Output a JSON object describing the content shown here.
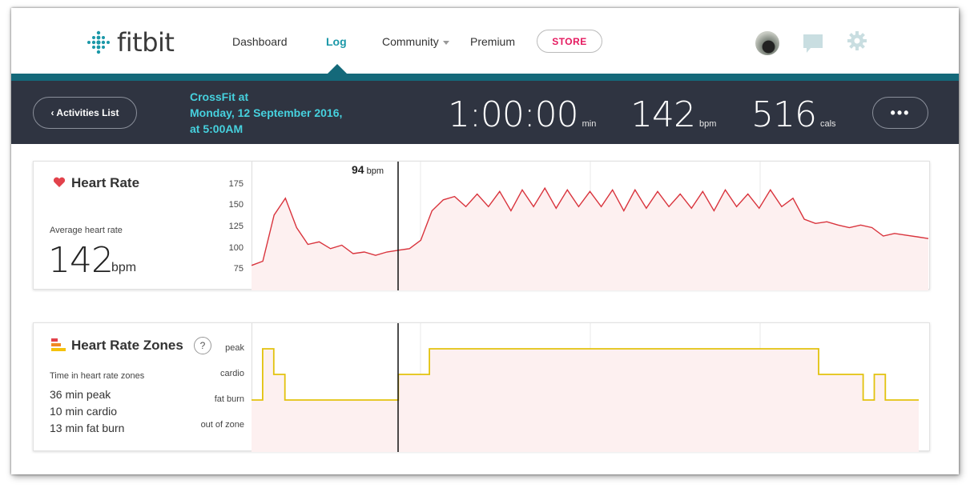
{
  "nav": {
    "logo_text": "fitbit",
    "items": [
      {
        "label": "Dashboard"
      },
      {
        "label": "Log"
      },
      {
        "label": "Community"
      },
      {
        "label": "Premium"
      }
    ],
    "store_label": "STORE"
  },
  "summary": {
    "back_label": "‹ Activities List",
    "activity_line1": "CrossFit at",
    "activity_line2": "Monday, 12 September 2016,",
    "activity_line3": "at 5:00AM",
    "duration": "1:00:00",
    "duration_unit": "min",
    "heart_rate": "142",
    "heart_rate_unit": "bpm",
    "calories": "516",
    "calories_unit": "cals",
    "more_label": "•••"
  },
  "heart_rate_card": {
    "title": "Heart Rate",
    "avg_label": "Average heart rate",
    "avg_value": "142",
    "avg_unit": "bpm",
    "cursor_value": "94",
    "cursor_unit": "bpm",
    "y_ticks": [
      "175",
      "150",
      "125",
      "100",
      "75"
    ]
  },
  "zones_card": {
    "title": "Heart Rate Zones",
    "help_label": "?",
    "time_label": "Time in heart rate zones",
    "peak": "36 min peak",
    "cardio": "10 min cardio",
    "fat_burn": "13 min fat burn",
    "zone_labels": [
      "peak",
      "cardio",
      "fat burn",
      "out of zone"
    ]
  },
  "colors": {
    "accent": "#1b98a8",
    "store": "#e5195f",
    "hr_line": "#d9343d",
    "zone_line": "#e2c20e",
    "summary_bg": "#2f3441"
  },
  "chart_data": [
    {
      "type": "line",
      "title": "Heart Rate",
      "ylabel": "",
      "xlabel": "",
      "ylim": [
        60,
        185
      ],
      "xlim": [
        0,
        60
      ],
      "series": [
        {
          "x": [
            0,
            1,
            2,
            3,
            4,
            5,
            6,
            7,
            8,
            9,
            10,
            11,
            12,
            13,
            14,
            15,
            16,
            17,
            18,
            19,
            20,
            21,
            22,
            23,
            24,
            25,
            26,
            27,
            28,
            29,
            30,
            31,
            32,
            33,
            34,
            35,
            36,
            37,
            38,
            39,
            40,
            41,
            42,
            43,
            44,
            45,
            46,
            47,
            48,
            49,
            50,
            51,
            52,
            53,
            54,
            55,
            56,
            57,
            58,
            59,
            60
          ],
          "y": [
            80,
            85,
            140,
            160,
            125,
            105,
            108,
            100,
            104,
            94,
            96,
            92,
            96,
            98,
            100,
            110,
            145,
            158,
            162,
            150,
            165,
            150,
            168,
            145,
            170,
            150,
            172,
            148,
            170,
            150,
            168,
            150,
            170,
            145,
            170,
            148,
            168,
            150,
            165,
            148,
            168,
            145,
            170,
            150,
            165,
            148,
            170,
            150,
            160,
            135,
            130,
            132,
            128,
            125,
            128,
            125,
            115,
            118,
            116,
            114,
            112
          ]
        }
      ]
    },
    {
      "type": "line",
      "title": "Heart Rate Zones",
      "categories": [
        "out of zone",
        "fat burn",
        "cardio",
        "peak"
      ],
      "xlim": [
        0,
        60
      ],
      "series": [
        {
          "x": [
            0,
            1.0,
            2.0,
            3.0,
            13.2,
            16.0,
            51.0,
            55.0,
            56.0,
            57.0,
            59.0,
            60.0
          ],
          "y": [
            1,
            3,
            2,
            1,
            2,
            3,
            2,
            1,
            2,
            1,
            1,
            1
          ]
        }
      ]
    }
  ]
}
